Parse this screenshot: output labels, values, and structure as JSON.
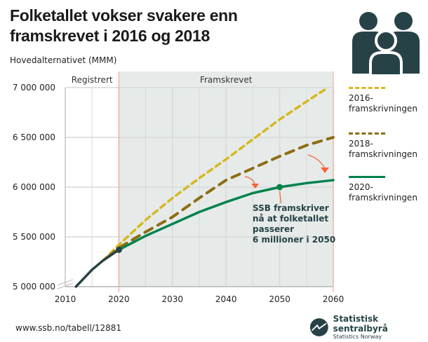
{
  "title": "Folketallet vokser svakere enn framskrevet i 2016 og 2018",
  "subtitle": "Hovedalternativet (MMM)",
  "source": "www.ssb.no/tabell/12881",
  "logo": {
    "name": "Statistisk sentralbyrå",
    "sub": "Statistics Norway"
  },
  "colors": {
    "registered": "#274247",
    "p2016": "#d6b81e",
    "p2018": "#8c6d12",
    "p2020": "#00824d",
    "arrow": "#f26539",
    "shade": "#e6ebea"
  },
  "chart_data": {
    "type": "line",
    "title": "Folketallet vokser svakere enn framskrevet i 2016 og 2018",
    "ylabel": "Hovedalternativet (MMM)",
    "xlim": [
      2010,
      2060
    ],
    "ylim": [
      5000000,
      7000000
    ],
    "xticks": [
      "2010",
      "2020",
      "2030",
      "2040",
      "2050",
      "2060"
    ],
    "yticks": [
      "5 000 000",
      "5 500 000",
      "6 000 000",
      "6 500 000",
      "7 000 000"
    ],
    "grid": true,
    "regions": [
      "Registrert",
      "Framskrevet"
    ],
    "legend_position": "right",
    "series": [
      {
        "key": "registered",
        "x": [
          2012,
          2015,
          2017,
          2020
        ],
        "values": [
          5000000,
          5170000,
          5260000,
          5370000
        ]
      },
      {
        "key": "p2016",
        "name": "2016-framskrivningen",
        "x": [
          2017,
          2020,
          2025,
          2030,
          2035,
          2040,
          2045,
          2050,
          2055,
          2059
        ],
        "values": [
          5260000,
          5420000,
          5670000,
          5890000,
          6090000,
          6280000,
          6480000,
          6680000,
          6860000,
          7000000
        ]
      },
      {
        "key": "p2018",
        "name": "2018-framskrivningen",
        "x": [
          2018,
          2020,
          2025,
          2030,
          2035,
          2040,
          2045,
          2050,
          2055,
          2060
        ],
        "values": [
          5300000,
          5390000,
          5550000,
          5700000,
          5890000,
          6070000,
          6190000,
          6310000,
          6420000,
          6500000
        ]
      },
      {
        "key": "p2020",
        "name": "2020-framskrivningen",
        "x": [
          2020,
          2025,
          2030,
          2035,
          2040,
          2045,
          2050,
          2055,
          2060
        ],
        "values": [
          5370000,
          5510000,
          5630000,
          5750000,
          5850000,
          5940000,
          6000000,
          6040000,
          6070000
        ]
      }
    ],
    "annotation": "SSB framskriver nå at folketallet passerer 6 millioner i 2050",
    "annotation_lines": [
      "SSB framskriver",
      "nå at folketallet",
      "passerer",
      "6 millioner i 2050"
    ]
  },
  "legend": [
    {
      "lines": [
        "2016-",
        "framskrivningen"
      ],
      "style": "dashed",
      "color": "#d6b81e"
    },
    {
      "lines": [
        "2018-",
        "framskrivningen"
      ],
      "style": "dashed",
      "color": "#8c6d12"
    },
    {
      "lines": [
        "2020-",
        "framskrivningen"
      ],
      "style": "solid",
      "color": "#00824d"
    }
  ]
}
